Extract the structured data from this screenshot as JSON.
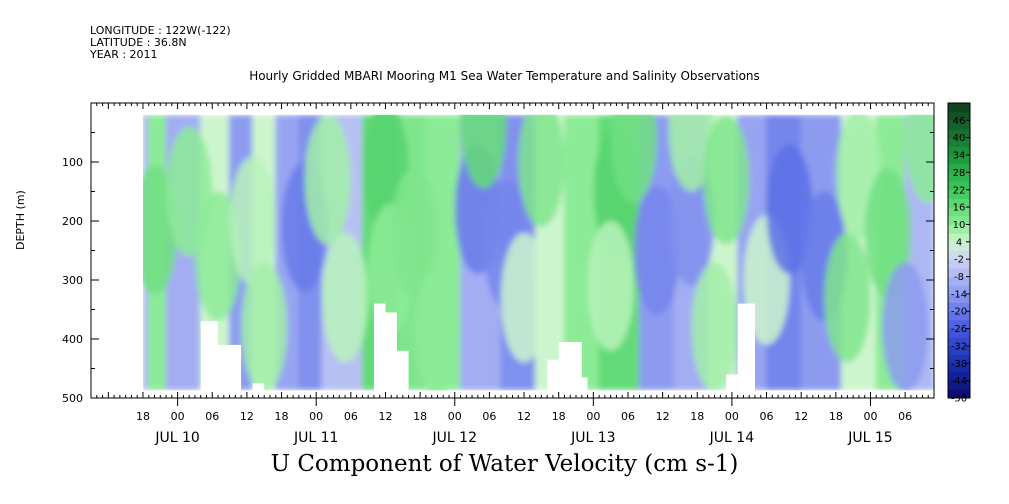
{
  "header": {
    "longitude": "LONGITUDE : 122W(-122)",
    "latitude": "LATITUDE : 36.8N",
    "year": "YEAR : 2011"
  },
  "colors": {
    "strong_negative": "#1a237e",
    "negative": "#8f9df0",
    "near_zero": "#d8dcf4",
    "positive": "#8ee895",
    "strong_positive": "#1f9b3a",
    "no_data": "#ffffff"
  },
  "chart_data": {
    "type": "heatmap",
    "title": "Hourly Gridded MBARI Mooring M1 Sea Water Temperature and Salinity Observations",
    "xlabel": "U Component of Water Velocity (cm s-1)",
    "ylabel": "DEPTH (m)",
    "x_range_hours": [
      0,
      146
    ],
    "x_range_start": "JUL 10 09:00 2011",
    "ylim": [
      500,
      0
    ],
    "y_ticks": [
      100,
      200,
      300,
      400,
      500
    ],
    "x_hour_labels": [
      "18",
      "00",
      "06",
      "12",
      "18",
      "00",
      "06",
      "12",
      "18",
      "00",
      "06",
      "12",
      "18",
      "00",
      "06",
      "12",
      "18",
      "00",
      "06",
      "12",
      "18",
      "00",
      "06"
    ],
    "x_date_labels": [
      "JUL 10",
      "JUL 11",
      "JUL 12",
      "JUL 13",
      "JUL 14",
      "JUL 15"
    ],
    "colorbar_labels": [
      "46",
      "40",
      "34",
      "28",
      "22",
      "16",
      "10",
      "4",
      "-2",
      "-8",
      "-14",
      "-20",
      "-26",
      "-32",
      "-38",
      "-44",
      "-50"
    ],
    "colorbar_range": [
      -50,
      52
    ],
    "data_depth_range": [
      20,
      487
    ],
    "data_start_hour": 9,
    "no_data_regions": [
      {
        "x": [
          19,
          22
        ],
        "depth": [
          370,
          500
        ]
      },
      {
        "x": [
          22,
          26
        ],
        "depth": [
          410,
          500
        ]
      },
      {
        "x": [
          28,
          30
        ],
        "depth": [
          475,
          500
        ]
      },
      {
        "x": [
          49,
          51
        ],
        "depth": [
          340,
          500
        ]
      },
      {
        "x": [
          51,
          53
        ],
        "depth": [
          355,
          500
        ]
      },
      {
        "x": [
          53,
          55
        ],
        "depth": [
          420,
          500
        ]
      },
      {
        "x": [
          79,
          81
        ],
        "depth": [
          435,
          500
        ]
      },
      {
        "x": [
          81,
          85
        ],
        "depth": [
          405,
          500
        ]
      },
      {
        "x": [
          84,
          86
        ],
        "depth": [
          465,
          500
        ]
      },
      {
        "x": [
          110,
          112
        ],
        "depth": [
          460,
          500
        ]
      },
      {
        "x": [
          112,
          115
        ],
        "depth": [
          340,
          500
        ]
      }
    ],
    "field_stripes": [
      {
        "x": [
          9,
          10
        ],
        "value": -8
      },
      {
        "x": [
          10,
          13
        ],
        "value": 10
      },
      {
        "x": [
          13,
          19
        ],
        "value": -10
      },
      {
        "x": [
          19,
          24
        ],
        "value": 4
      },
      {
        "x": [
          24,
          28
        ],
        "value": -14
      },
      {
        "x": [
          28,
          32
        ],
        "value": 4
      },
      {
        "x": [
          32,
          36
        ],
        "value": -12
      },
      {
        "x": [
          36,
          40
        ],
        "value": -16
      },
      {
        "x": [
          40,
          47
        ],
        "value": -6
      },
      {
        "x": [
          47,
          53
        ],
        "value": 16
      },
      {
        "x": [
          53,
          58
        ],
        "value": 12
      },
      {
        "x": [
          58,
          64
        ],
        "value": 10
      },
      {
        "x": [
          64,
          71
        ],
        "value": -10
      },
      {
        "x": [
          71,
          77
        ],
        "value": -16
      },
      {
        "x": [
          77,
          82
        ],
        "value": 4
      },
      {
        "x": [
          82,
          88
        ],
        "value": 10
      },
      {
        "x": [
          88,
          95
        ],
        "value": 16
      },
      {
        "x": [
          95,
          101
        ],
        "value": -14
      },
      {
        "x": [
          101,
          107
        ],
        "value": -10
      },
      {
        "x": [
          107,
          112
        ],
        "value": 4
      },
      {
        "x": [
          112,
          117
        ],
        "value": -12
      },
      {
        "x": [
          117,
          123
        ],
        "value": -18
      },
      {
        "x": [
          123,
          130
        ],
        "value": -14
      },
      {
        "x": [
          130,
          136
        ],
        "value": 4
      },
      {
        "x": [
          136,
          141
        ],
        "value": 10
      },
      {
        "x": [
          141,
          146
        ],
        "value": -8
      }
    ],
    "field_blobs": [
      {
        "x": 11,
        "depth": 215,
        "value": 14
      },
      {
        "x": 17,
        "depth": 150,
        "value": 10
      },
      {
        "x": 22,
        "depth": 260,
        "value": 10
      },
      {
        "x": 28,
        "depth": 200,
        "value": 6
      },
      {
        "x": 30,
        "depth": 380,
        "value": 8
      },
      {
        "x": 37,
        "depth": 210,
        "value": -20
      },
      {
        "x": 41,
        "depth": 130,
        "value": 8
      },
      {
        "x": 44,
        "depth": 330,
        "value": 6
      },
      {
        "x": 51,
        "depth": 110,
        "value": 18
      },
      {
        "x": 52,
        "depth": 280,
        "value": 10
      },
      {
        "x": 56,
        "depth": 220,
        "value": 12
      },
      {
        "x": 60,
        "depth": 390,
        "value": 10
      },
      {
        "x": 67,
        "depth": 180,
        "value": -20
      },
      {
        "x": 72,
        "depth": 240,
        "value": -18
      },
      {
        "x": 68,
        "depth": 35,
        "value": 16
      },
      {
        "x": 78,
        "depth": 100,
        "value": 12
      },
      {
        "x": 75,
        "depth": 330,
        "value": 4
      },
      {
        "x": 91,
        "depth": 150,
        "value": 18
      },
      {
        "x": 94,
        "depth": 60,
        "value": 14
      },
      {
        "x": 90,
        "depth": 310,
        "value": 6
      },
      {
        "x": 98,
        "depth": 250,
        "value": -18
      },
      {
        "x": 104,
        "depth": 200,
        "value": -16
      },
      {
        "x": 104,
        "depth": 40,
        "value": 8
      },
      {
        "x": 110,
        "depth": 130,
        "value": 12
      },
      {
        "x": 108,
        "depth": 380,
        "value": 8
      },
      {
        "x": 117,
        "depth": 300,
        "value": 4
      },
      {
        "x": 121,
        "depth": 180,
        "value": -22
      },
      {
        "x": 127,
        "depth": 260,
        "value": -20
      },
      {
        "x": 133,
        "depth": 120,
        "value": 8
      },
      {
        "x": 131,
        "depth": 330,
        "value": 12
      },
      {
        "x": 138,
        "depth": 220,
        "value": 14
      },
      {
        "x": 141,
        "depth": 380,
        "value": -14
      },
      {
        "x": 145,
        "depth": 60,
        "value": 10
      }
    ]
  }
}
